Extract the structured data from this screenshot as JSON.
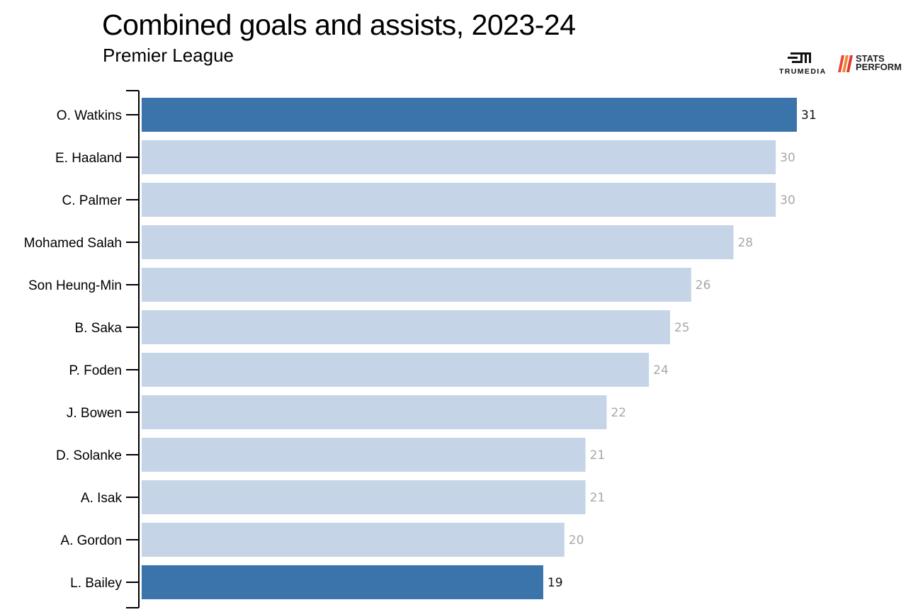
{
  "header": {
    "title": "Combined goals and assists, 2023-24",
    "subtitle": "Premier League"
  },
  "logos": {
    "trumedia": "TRUMEDIA",
    "stats_perform_line1": "STATS",
    "stats_perform_line2": "PERFORM"
  },
  "colors": {
    "highlight": "#3b74ab",
    "default": "#c5d5e7",
    "highlight_label": "#111111",
    "default_label": "#a8a8a8",
    "axis": "#000000"
  },
  "chart_data": {
    "type": "bar",
    "orientation": "horizontal",
    "title": "Combined goals and assists, 2023-24",
    "subtitle": "Premier League",
    "categories": [
      "O. Watkins",
      "E. Haaland",
      "C. Palmer",
      "Mohamed Salah",
      "Son Heung-Min",
      "B. Saka",
      "P. Foden",
      "J. Bowen",
      "D. Solanke",
      "A. Isak",
      "A. Gordon",
      "L. Bailey"
    ],
    "values": [
      31,
      30,
      30,
      28,
      26,
      25,
      24,
      22,
      21,
      21,
      20,
      19
    ],
    "highlighted": [
      "O. Watkins",
      "L. Bailey"
    ],
    "xlim": [
      0,
      31
    ],
    "grid": false,
    "data_labels": true
  }
}
